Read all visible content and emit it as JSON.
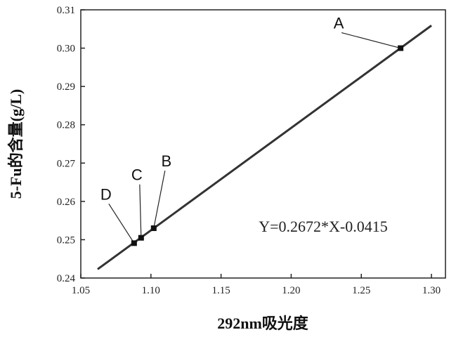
{
  "chart_data": {
    "type": "line",
    "xlabel": "292nm吸光度",
    "ylabel": "5-Fu的含量(g/L)",
    "xlim": [
      1.05,
      1.31
    ],
    "ylim": [
      0.24,
      0.31
    ],
    "x_ticks": [
      1.05,
      1.1,
      1.15,
      1.2,
      1.25,
      1.3
    ],
    "y_ticks": [
      0.24,
      0.25,
      0.26,
      0.27,
      0.28,
      0.29,
      0.3,
      0.31
    ],
    "x_tick_labels": [
      "1.05",
      "1.10",
      "1.15",
      "1.20",
      "1.25",
      "1.30"
    ],
    "y_tick_labels": [
      "0.24",
      "0.25",
      "0.26",
      "0.27",
      "0.28",
      "0.29",
      "0.30",
      "0.31"
    ],
    "fit_line": {
      "x": [
        1.062,
        1.3
      ],
      "y": [
        0.2423,
        0.3059
      ]
    },
    "equation": "Y=0.2672*X-0.0415",
    "points": [
      {
        "label": "A",
        "x": 1.278,
        "y": 0.3
      },
      {
        "label": "B",
        "x": 1.102,
        "y": 0.253
      },
      {
        "label": "C",
        "x": 1.093,
        "y": 0.2505
      },
      {
        "label": "D",
        "x": 1.088,
        "y": 0.2491
      }
    ],
    "grid": false,
    "line_color": "#333333",
    "marker_color": "#111111"
  }
}
